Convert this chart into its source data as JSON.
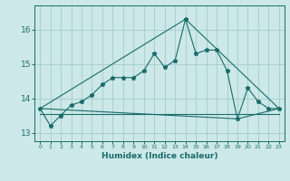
{
  "xlabel": "Humidex (Indice chaleur)",
  "ylabel": "",
  "background_color": "#cce8e8",
  "grid_color": "#aacfcf",
  "line_color": "#1a6b6b",
  "x_values": [
    0,
    1,
    2,
    3,
    4,
    5,
    6,
    7,
    8,
    9,
    10,
    11,
    12,
    13,
    14,
    15,
    16,
    17,
    18,
    19,
    20,
    21,
    22,
    23
  ],
  "series1": [
    13.7,
    13.2,
    13.5,
    13.8,
    13.9,
    14.1,
    14.4,
    14.6,
    14.6,
    14.6,
    14.8,
    15.3,
    14.9,
    15.1,
    16.3,
    15.3,
    15.4,
    15.4,
    14.8,
    13.4,
    14.3,
    13.9,
    13.7,
    13.7
  ],
  "series2_x": [
    0,
    14,
    23
  ],
  "series2_y": [
    13.7,
    16.3,
    13.7
  ],
  "series3_x": [
    0,
    19,
    23
  ],
  "series3_y": [
    13.7,
    13.4,
    13.7
  ],
  "series4_x": [
    0,
    23
  ],
  "series4_y": [
    13.55,
    13.55
  ],
  "ylim": [
    12.75,
    16.7
  ],
  "xlim": [
    -0.5,
    23.5
  ],
  "yticks": [
    13,
    14,
    15,
    16
  ],
  "xticks": [
    0,
    1,
    2,
    3,
    4,
    5,
    6,
    7,
    8,
    9,
    10,
    11,
    12,
    13,
    14,
    15,
    16,
    17,
    18,
    19,
    20,
    21,
    22,
    23
  ]
}
